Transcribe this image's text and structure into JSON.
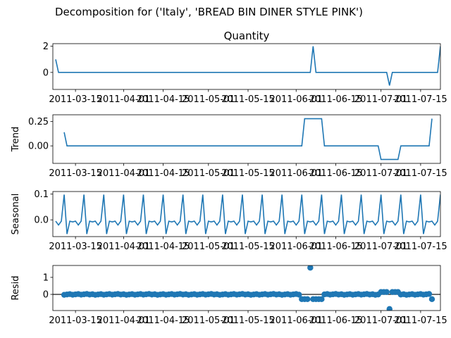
{
  "figure": {
    "suptitle": "Decomposition for ('Italy', 'BREAD BIN DINER STYLE PINK')",
    "line_color": "#1f77b4"
  },
  "chart_data": [
    {
      "type": "line",
      "title": "Quantity",
      "ylabel": "",
      "ylim": [
        -1.3,
        2.2
      ],
      "yticks": [
        0,
        2
      ],
      "x": [
        "2011-03-08",
        "2011-03-09",
        "2011-07-21",
        "2011-07-22",
        "2011-06-06",
        "2011-06-07",
        "2011-06-08",
        "2011-07-03",
        "2011-07-04",
        "2011-07-05"
      ],
      "series": [
        {
          "points": [
            [
              "2011-03-08",
              1
            ],
            [
              "2011-03-09",
              0
            ],
            [
              "2011-06-06",
              0
            ],
            [
              "2011-06-07",
              2
            ],
            [
              "2011-06-08",
              0
            ],
            [
              "2011-07-03",
              0
            ],
            [
              "2011-07-04",
              -1
            ],
            [
              "2011-07-05",
              0
            ],
            [
              "2011-07-21",
              0
            ],
            [
              "2011-07-22",
              2
            ]
          ]
        }
      ]
    },
    {
      "type": "line",
      "title": "",
      "ylabel": "Trend",
      "ylim": [
        -0.18,
        0.32
      ],
      "yticks": [
        "0.00",
        "0.25"
      ],
      "yticks_values": [
        0,
        0.25
      ],
      "series": [
        {
          "points": [
            [
              "2011-03-11",
              0.14
            ],
            [
              "2011-03-12",
              0
            ],
            [
              "2011-06-03",
              0
            ],
            [
              "2011-06-04",
              0.28
            ],
            [
              "2011-06-10",
              0.28
            ],
            [
              "2011-06-11",
              0
            ],
            [
              "2011-06-30",
              0
            ],
            [
              "2011-07-01",
              -0.14
            ],
            [
              "2011-07-07",
              -0.14
            ],
            [
              "2011-07-08",
              0
            ],
            [
              "2011-07-18",
              0
            ],
            [
              "2011-07-19",
              0.28
            ]
          ]
        }
      ]
    },
    {
      "type": "line",
      "title": "",
      "ylabel": "Seasonal",
      "ylim": [
        -0.065,
        0.11
      ],
      "yticks": [
        "0.0",
        "0.1"
      ],
      "yticks_values": [
        0,
        0.1
      ],
      "period": 7,
      "pattern": [
        -0.005,
        -0.02,
        -0.005,
        0.098,
        -0.055,
        -0.005,
        -0.008
      ],
      "start": "2011-03-08",
      "end": "2011-07-22"
    },
    {
      "type": "scatter",
      "title": "",
      "ylabel": "Resid",
      "ylim": [
        -0.95,
        1.7
      ],
      "yticks": [
        0,
        1
      ],
      "hline": 0,
      "start": "2011-03-11",
      "end": "2011-07-19",
      "baseline_noise": 0.05,
      "special": [
        [
          "2011-06-06",
          1.57
        ],
        [
          "2011-07-04",
          -0.86
        ],
        [
          "2011-06-03",
          -0.28
        ],
        [
          "2011-06-04",
          -0.28
        ],
        [
          "2011-06-05",
          -0.28
        ],
        [
          "2011-06-07",
          -0.28
        ],
        [
          "2011-06-08",
          -0.28
        ],
        [
          "2011-06-09",
          -0.28
        ],
        [
          "2011-06-10",
          -0.28
        ],
        [
          "2011-07-01",
          0.14
        ],
        [
          "2011-07-02",
          0.14
        ],
        [
          "2011-07-03",
          0.14
        ],
        [
          "2011-07-05",
          0.14
        ],
        [
          "2011-07-06",
          0.14
        ],
        [
          "2011-07-07",
          0.14
        ],
        [
          "2011-07-19",
          -0.28
        ]
      ]
    }
  ],
  "xaxis": {
    "min": "2011-03-07",
    "max": "2011-07-22",
    "ticks": [
      {
        "date": "2011-03-15",
        "label": "2011-03-15"
      },
      {
        "date": "2011-04-01",
        "label": "2011-04-01"
      },
      {
        "date": "2011-04-15",
        "label": "2011-04-15"
      },
      {
        "date": "2011-05-01",
        "label": "2011-05-01"
      },
      {
        "date": "2011-05-15",
        "label": "2011-05-15"
      },
      {
        "date": "2011-06-01",
        "label": "2011-06-01"
      },
      {
        "date": "2011-06-15",
        "label": "2011-06-15"
      },
      {
        "date": "2011-07-01",
        "label": "2011-07-01"
      },
      {
        "date": "2011-07-15",
        "label": "2011-07-15"
      }
    ]
  }
}
